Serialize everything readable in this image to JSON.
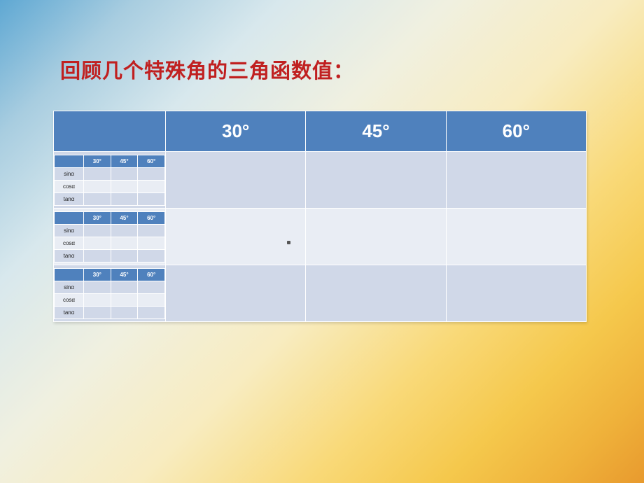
{
  "title": "回顾几个特殊角的三角函数值：",
  "main_table": {
    "headers": [
      "",
      "30°",
      "45°",
      "60°"
    ],
    "header_bg": "#4f81bd",
    "header_fg": "#ffffff",
    "row_odd_bg": "#d0d8e8",
    "row_even_bg": "#e9edf4",
    "row_count": 3
  },
  "mini_table": {
    "headers": [
      "",
      "30°",
      "45°",
      "60°"
    ],
    "rows": [
      "sinα",
      "cosα",
      "tanα"
    ]
  }
}
